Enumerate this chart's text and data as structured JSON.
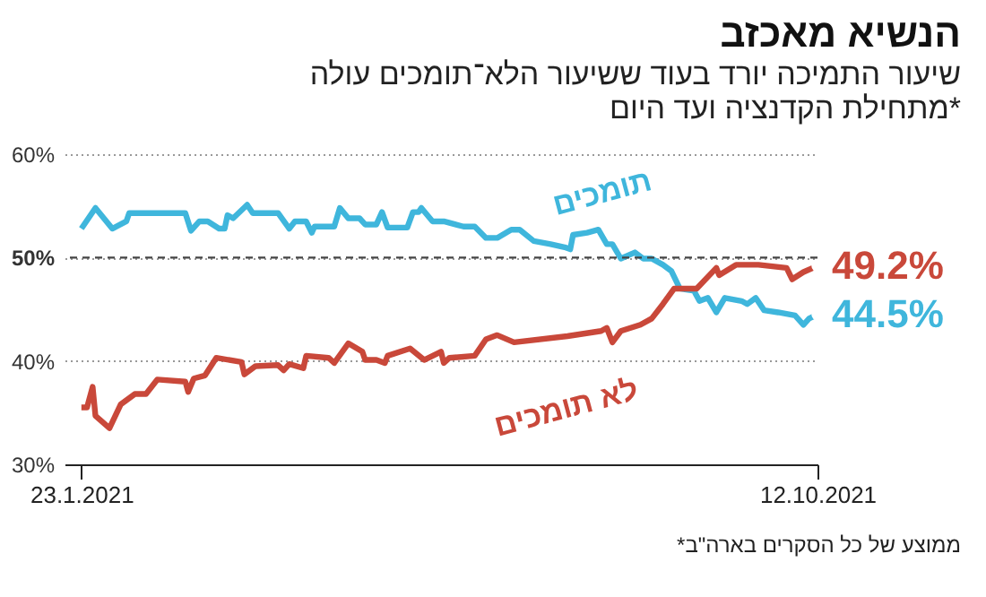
{
  "chart_data": {
    "type": "line",
    "title": "הנשיא מאכזב",
    "subtitle": [
      "שיעור התמיכה יורד בעוד ששיעור הלא־תומכים עולה",
      "מתחילת הקדנציה ועד היום*"
    ],
    "annotations": [
      "*ממוצע של כל הסקרים בארה\"ב"
    ],
    "xlim": [
      "2021-01-17",
      "2021-10-12"
    ],
    "xticks": [
      {
        "value": "2021-01-23",
        "label": "23.1.2021"
      },
      {
        "value": "2021-10-12",
        "label": "12.10.2021"
      }
    ],
    "ylim": [
      30,
      60
    ],
    "yticks": [
      {
        "value": 30,
        "label": "30%"
      },
      {
        "value": 40,
        "label": "40%"
      },
      {
        "value": 50,
        "label": "50%"
      },
      {
        "value": 60,
        "label": "60%"
      }
    ],
    "grid": "y",
    "legend": false,
    "line_style": "solid",
    "ref_lines": [
      {
        "axis": "y",
        "value": 50,
        "line_style": "dashed",
        "color": "#444444"
      }
    ],
    "series": [
      {
        "name": "תומכים",
        "color": "#3fb6dc",
        "x": [
          "2021-01-23",
          "2021-01-28",
          "2021-02-03",
          "2021-02-08",
          "2021-02-09",
          "2021-03-01",
          "2021-03-03",
          "2021-03-06",
          "2021-03-09",
          "2021-03-13",
          "2021-03-15",
          "2021-03-16",
          "2021-03-18",
          "2021-03-23",
          "2021-03-25",
          "2021-04-03",
          "2021-04-07",
          "2021-04-09",
          "2021-04-13",
          "2021-04-15",
          "2021-04-16",
          "2021-04-23",
          "2021-04-25",
          "2021-04-28",
          "2021-05-02",
          "2021-05-04",
          "2021-05-08",
          "2021-05-10",
          "2021-05-12",
          "2021-05-19",
          "2021-05-21",
          "2021-05-23",
          "2021-05-24",
          "2021-05-28",
          "2021-06-01",
          "2021-06-08",
          "2021-06-12",
          "2021-06-16",
          "2021-06-20",
          "2021-06-25",
          "2021-06-28",
          "2021-07-03",
          "2021-07-09",
          "2021-07-14",
          "2021-07-16",
          "2021-07-17",
          "2021-07-22",
          "2021-07-26",
          "2021-07-29",
          "2021-07-31",
          "2021-08-03",
          "2021-08-08",
          "2021-08-11",
          "2021-08-14",
          "2021-08-18",
          "2021-08-21",
          "2021-08-24",
          "2021-08-29",
          "2021-08-31",
          "2021-09-03",
          "2021-09-06",
          "2021-09-09",
          "2021-09-15",
          "2021-09-17",
          "2021-09-20",
          "2021-09-23",
          "2021-09-28",
          "2021-10-04",
          "2021-10-07",
          "2021-10-09",
          "2021-10-12"
        ],
        "values": [
          52.8,
          54.8,
          52.8,
          53.5,
          54.3,
          54.3,
          52.6,
          53.5,
          53.5,
          52.8,
          52.8,
          54.1,
          53.8,
          55.1,
          54.3,
          54.3,
          52.8,
          53.5,
          53.5,
          52.4,
          53.0,
          53.0,
          54.8,
          53.8,
          53.8,
          53.2,
          53.2,
          54.4,
          52.9,
          52.9,
          54.4,
          54.4,
          54.8,
          53.5,
          53.5,
          53.0,
          53.0,
          51.9,
          51.9,
          52.7,
          52.7,
          51.6,
          51.3,
          51.0,
          50.8,
          52.2,
          52.4,
          52.7,
          51.3,
          51.3,
          49.9,
          50.5,
          49.9,
          49.9,
          49.3,
          48.7,
          47.0,
          46.8,
          45.8,
          46.1,
          44.7,
          46.1,
          45.8,
          45.5,
          46.1,
          44.9,
          44.7,
          44.4,
          43.5,
          44.1,
          44.5
        ],
        "value_labels": [
          null,
          null,
          null,
          null,
          null,
          null,
          null,
          null,
          null,
          null,
          null,
          null,
          null,
          null,
          null,
          null,
          null,
          null,
          null,
          null,
          null,
          null,
          null,
          null,
          null,
          null,
          null,
          null,
          null,
          null,
          null,
          null,
          null,
          null,
          null,
          null,
          null,
          null,
          null,
          null,
          null,
          null,
          null,
          null,
          null,
          null,
          null,
          null,
          null,
          null,
          null,
          null,
          null,
          null,
          null,
          null,
          null,
          null,
          null,
          null,
          null,
          null,
          null,
          null,
          null,
          null,
          null,
          null,
          null,
          null,
          "44.5%"
        ]
      },
      {
        "name": "לא תומכים",
        "color": "#c9483a",
        "x": [
          "2021-01-23",
          "2021-01-25",
          "2021-01-27",
          "2021-01-28",
          "2021-02-02",
          "2021-02-06",
          "2021-02-11",
          "2021-02-15",
          "2021-02-19",
          "2021-03-01",
          "2021-03-02",
          "2021-03-04",
          "2021-03-08",
          "2021-03-12",
          "2021-03-21",
          "2021-03-22",
          "2021-03-26",
          "2021-04-03",
          "2021-04-05",
          "2021-04-07",
          "2021-04-12",
          "2021-04-13",
          "2021-04-21",
          "2021-04-23",
          "2021-04-28",
          "2021-05-03",
          "2021-05-04",
          "2021-05-08",
          "2021-05-11",
          "2021-05-12",
          "2021-05-20",
          "2021-05-25",
          "2021-05-31",
          "2021-06-01",
          "2021-06-03",
          "2021-06-12",
          "2021-06-16",
          "2021-06-20",
          "2021-06-26",
          "2021-07-15",
          "2021-07-27",
          "2021-07-29",
          "2021-07-31",
          "2021-08-03",
          "2021-08-10",
          "2021-08-14",
          "2021-08-18",
          "2021-08-22",
          "2021-08-30",
          "2021-09-06",
          "2021-09-07",
          "2021-09-13",
          "2021-09-21",
          "2021-10-01",
          "2021-10-03",
          "2021-10-07",
          "2021-10-12"
        ],
        "values": [
          35.5,
          35.5,
          37.5,
          34.7,
          33.5,
          35.8,
          36.8,
          36.8,
          38.2,
          38.0,
          37.0,
          38.3,
          38.6,
          40.3,
          39.9,
          38.7,
          39.5,
          39.6,
          39.1,
          39.7,
          39.3,
          40.5,
          40.3,
          39.8,
          41.7,
          40.9,
          40.1,
          40.1,
          39.8,
          40.5,
          41.2,
          40.1,
          40.9,
          39.8,
          40.3,
          40.5,
          42.1,
          42.5,
          41.8,
          42.4,
          42.9,
          43.2,
          41.8,
          42.9,
          43.5,
          44.1,
          45.5,
          47.0,
          47.0,
          49.0,
          48.3,
          49.3,
          49.3,
          49.0,
          47.9,
          48.6,
          49.2
        ],
        "value_labels": [
          null,
          null,
          null,
          null,
          null,
          null,
          null,
          null,
          null,
          null,
          null,
          null,
          null,
          null,
          null,
          null,
          null,
          null,
          null,
          null,
          null,
          null,
          null,
          null,
          null,
          null,
          null,
          null,
          null,
          null,
          null,
          null,
          null,
          null,
          null,
          null,
          null,
          null,
          null,
          null,
          null,
          null,
          null,
          null,
          null,
          null,
          null,
          null,
          null,
          null,
          null,
          null,
          null,
          null,
          null,
          null,
          "49.2%"
        ]
      }
    ]
  }
}
